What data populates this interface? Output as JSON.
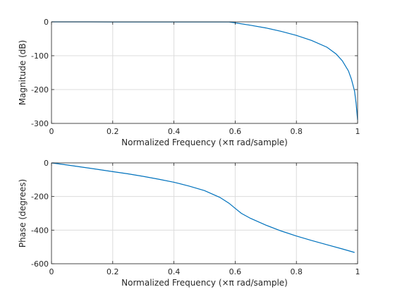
{
  "chart_data": [
    {
      "type": "line",
      "title": "",
      "xlabel": "Normalized Frequency  (×π rad/sample)",
      "ylabel": "Magnitude (dB)",
      "xlim": [
        0,
        1
      ],
      "ylim": [
        -300,
        0
      ],
      "xticks": [
        0,
        0.2,
        0.4,
        0.6,
        0.8,
        1
      ],
      "yticks": [
        0,
        -100,
        -200,
        -300
      ],
      "xtick_labels": [
        "0",
        "0.2",
        "0.4",
        "0.6",
        "0.8",
        "1"
      ],
      "ytick_labels": [
        "0",
        "-100",
        "-200",
        "-300"
      ],
      "grid": true,
      "line_color": "#0072bd",
      "series": [
        {
          "x": [
            0,
            0.1,
            0.2,
            0.3,
            0.4,
            0.5,
            0.55,
            0.58,
            0.6,
            0.65,
            0.7,
            0.75,
            0.8,
            0.85,
            0.9,
            0.93,
            0.95,
            0.97,
            0.98,
            0.99,
            0.995,
            1.0
          ],
          "y": [
            0,
            0,
            -0.3,
            -0.3,
            -0.3,
            -0.3,
            -0.3,
            -0.5,
            -3,
            -10,
            -18,
            -28,
            -40,
            -55,
            -75,
            -95,
            -115,
            -145,
            -170,
            -205,
            -240,
            -290
          ]
        }
      ]
    },
    {
      "type": "line",
      "title": "",
      "xlabel": "Normalized Frequency  (×π rad/sample)",
      "ylabel": "Phase (degrees)",
      "xlim": [
        0,
        1
      ],
      "ylim": [
        -600,
        0
      ],
      "xticks": [
        0,
        0.2,
        0.4,
        0.6,
        0.8,
        1
      ],
      "yticks": [
        0,
        -200,
        -400,
        -600
      ],
      "xtick_labels": [
        "0",
        "0.2",
        "0.4",
        "0.6",
        "0.8",
        "1"
      ],
      "ytick_labels": [
        "0",
        "-200",
        "-400",
        "-600"
      ],
      "grid": true,
      "line_color": "#0072bd",
      "series": [
        {
          "x": [
            0,
            0.05,
            0.1,
            0.15,
            0.2,
            0.25,
            0.3,
            0.35,
            0.4,
            0.45,
            0.5,
            0.55,
            0.58,
            0.6,
            0.62,
            0.65,
            0.7,
            0.75,
            0.8,
            0.85,
            0.9,
            0.95,
            0.99
          ],
          "y": [
            0,
            -12,
            -25,
            -38,
            -52,
            -65,
            -80,
            -97,
            -115,
            -138,
            -165,
            -205,
            -240,
            -270,
            -300,
            -330,
            -370,
            -405,
            -435,
            -462,
            -487,
            -512,
            -533
          ]
        }
      ]
    }
  ]
}
